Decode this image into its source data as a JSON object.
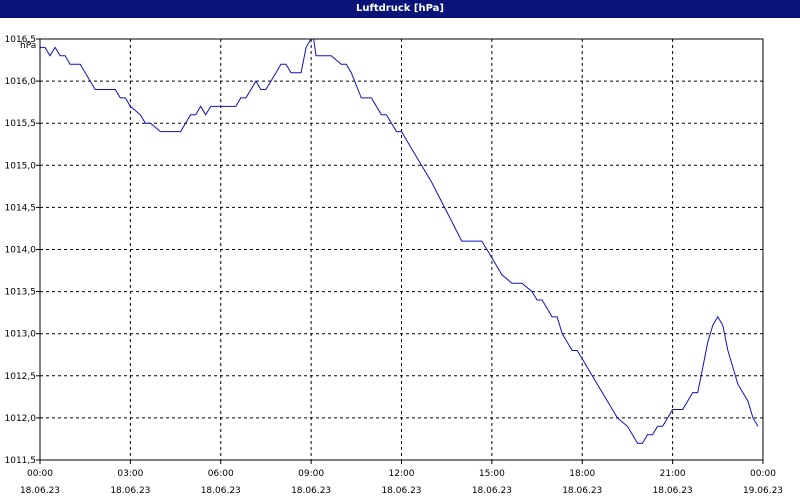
{
  "window": {
    "title": "Luftdruck [hPa]"
  },
  "colors": {
    "titlebar": "#0a1478",
    "line": "#1010c0",
    "grid": "#000000",
    "background": "#ffffff"
  },
  "chart_data": {
    "type": "line",
    "title": "Luftdruck [hPa]",
    "ylabel": "hPa",
    "xlabel": "",
    "grid": true,
    "ylim": [
      1011.5,
      1016.5
    ],
    "xlim": [
      "18.06.23 00:00",
      "19.06.23 00:00"
    ],
    "y_ticks": [
      "1011,5",
      "1012,0",
      "1012,5",
      "1013,0",
      "1013,5",
      "1014,0",
      "1014,5",
      "1015,0",
      "1015,5",
      "1016,0",
      "1016,5"
    ],
    "x_tick_times": [
      "00:00",
      "03:00",
      "06:00",
      "09:00",
      "12:00",
      "15:00",
      "18:00",
      "21:00",
      "00:00"
    ],
    "x_tick_dates": [
      "18.06.23",
      "18.06.23",
      "18.06.23",
      "18.06.23",
      "18.06.23",
      "18.06.23",
      "18.06.23",
      "18.06.23",
      "19.06.23"
    ],
    "series": [
      {
        "x": [
          "18.06.23 00:00",
          "18.06.23 00:10",
          "18.06.23 00:20",
          "18.06.23 00:30",
          "18.06.23 00:40",
          "18.06.23 00:50",
          "18.06.23 01:00",
          "18.06.23 01:20",
          "18.06.23 01:40",
          "18.06.23 01:50",
          "18.06.23 02:00",
          "18.06.23 02:30",
          "18.06.23 02:40",
          "18.06.23 02:50",
          "18.06.23 03:00",
          "18.06.23 03:20",
          "18.06.23 03:30",
          "18.06.23 03:40",
          "18.06.23 04:00",
          "18.06.23 04:20",
          "18.06.23 04:40",
          "18.06.23 04:50",
          "18.06.23 05:00",
          "18.06.23 05:10",
          "18.06.23 05:20",
          "18.06.23 05:30",
          "18.06.23 05:40",
          "18.06.23 06:00",
          "18.06.23 06:30",
          "18.06.23 06:40",
          "18.06.23 06:50",
          "18.06.23 07:00",
          "18.06.23 07:10",
          "18.06.23 07:20",
          "18.06.23 07:30",
          "18.06.23 08:00",
          "18.06.23 08:10",
          "18.06.23 08:20",
          "18.06.23 08:40",
          "18.06.23 08:50",
          "18.06.23 09:00",
          "18.06.23 09:05",
          "18.06.23 09:10",
          "18.06.23 09:20",
          "18.06.23 09:40",
          "18.06.23 10:00",
          "18.06.23 10:10",
          "18.06.23 10:20",
          "18.06.23 10:40",
          "18.06.23 11:00",
          "18.06.23 11:20",
          "18.06.23 11:30",
          "18.06.23 11:40",
          "18.06.23 11:50",
          "18.06.23 12:00",
          "18.06.23 12:10",
          "18.06.23 12:20",
          "18.06.23 13:00",
          "18.06.23 14:00",
          "18.06.23 14:40",
          "18.06.23 14:50",
          "18.06.23 15:00",
          "18.06.23 15:20",
          "18.06.23 15:40",
          "18.06.23 16:00",
          "18.06.23 16:20",
          "18.06.23 16:30",
          "18.06.23 16:40",
          "18.06.23 16:50",
          "18.06.23 17:00",
          "18.06.23 17:10",
          "18.06.23 17:20",
          "18.06.23 17:30",
          "18.06.23 17:40",
          "18.06.23 17:50",
          "18.06.23 18:00",
          "18.06.23 18:30",
          "18.06.23 18:50",
          "18.06.23 19:00",
          "18.06.23 19:10",
          "18.06.23 19:30",
          "18.06.23 19:40",
          "18.06.23 19:50",
          "18.06.23 20:00",
          "18.06.23 20:10",
          "18.06.23 20:20",
          "18.06.23 20:30",
          "18.06.23 20:40",
          "18.06.23 20:50",
          "18.06.23 21:00",
          "18.06.23 21:10",
          "18.06.23 21:20",
          "18.06.23 21:30",
          "18.06.23 21:40",
          "18.06.23 21:50",
          "18.06.23 22:00",
          "18.06.23 22:10",
          "18.06.23 22:20",
          "18.06.23 22:30",
          "18.06.23 22:40",
          "18.06.23 22:50",
          "18.06.23 23:00",
          "18.06.23 23:10",
          "18.06.23 23:20",
          "18.06.23 23:30",
          "18.06.23 23:40",
          "18.06.23 23:50"
        ],
        "y": [
          1016.4,
          1016.4,
          1016.3,
          1016.4,
          1016.3,
          1016.3,
          1016.2,
          1016.2,
          1016.0,
          1015.9,
          1015.9,
          1015.9,
          1015.8,
          1015.8,
          1015.7,
          1015.6,
          1015.5,
          1015.5,
          1015.4,
          1015.4,
          1015.4,
          1015.5,
          1015.6,
          1015.6,
          1015.7,
          1015.6,
          1015.7,
          1015.7,
          1015.7,
          1015.8,
          1015.8,
          1015.9,
          1016.0,
          1015.9,
          1015.9,
          1016.2,
          1016.2,
          1016.1,
          1016.1,
          1016.4,
          1016.5,
          1016.5,
          1016.3,
          1016.3,
          1016.3,
          1016.2,
          1016.2,
          1016.1,
          1015.8,
          1015.8,
          1015.6,
          1015.6,
          1015.5,
          1015.4,
          1015.4,
          1015.3,
          1015.2,
          1014.8,
          1014.1,
          1014.1,
          1014.0,
          1013.9,
          1013.7,
          1013.6,
          1013.6,
          1013.5,
          1013.4,
          1013.4,
          1013.3,
          1013.2,
          1013.2,
          1013.0,
          1012.9,
          1012.8,
          1012.8,
          1012.7,
          1012.4,
          1012.2,
          1012.1,
          1012.0,
          1011.9,
          1011.8,
          1011.7,
          1011.7,
          1011.8,
          1011.8,
          1011.9,
          1011.9,
          1012.0,
          1012.1,
          1012.1,
          1012.1,
          1012.2,
          1012.3,
          1012.3,
          1012.6,
          1012.9,
          1013.1,
          1013.2,
          1013.1,
          1012.8,
          1012.6,
          1012.4,
          1012.3,
          1012.2,
          1012.0,
          1011.9
        ]
      }
    ]
  }
}
